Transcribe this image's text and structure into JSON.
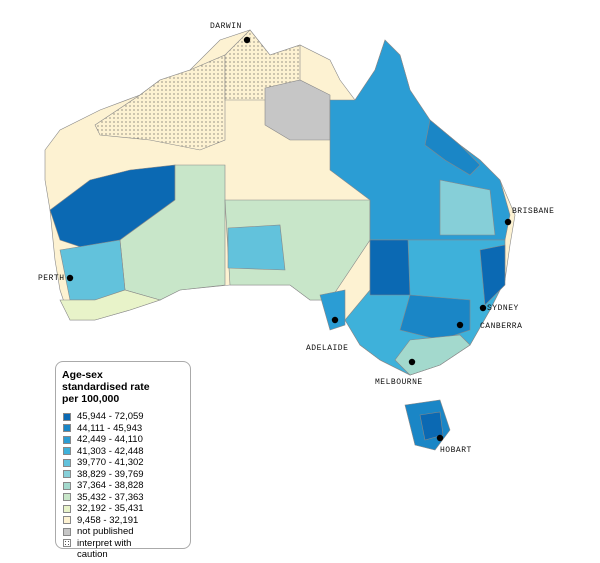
{
  "legend": {
    "title": "Age-sex standardised rate per 100,000",
    "items": [
      {
        "label": "45,944 - 72,059",
        "color": "#0b69b3"
      },
      {
        "label": "44,111 - 45,943",
        "color": "#1a86c6"
      },
      {
        "label": "42,449 - 44,110",
        "color": "#2b9dd4"
      },
      {
        "label": "41,303 - 42,448",
        "color": "#3eb1da"
      },
      {
        "label": "39,770 - 41,302",
        "color": "#62c2dc"
      },
      {
        "label": "38,829 - 39,769",
        "color": "#86cfd8"
      },
      {
        "label": "37,364 - 38,828",
        "color": "#a3d9cd"
      },
      {
        "label": "35,432 - 37,363",
        "color": "#c8e6c9"
      },
      {
        "label": "32,192 - 35,431",
        "color": "#e8f3c9"
      },
      {
        "label": "9,458 - 32,191",
        "color": "#fdf2d2"
      },
      {
        "label": "not published",
        "color": "#c6c6c6"
      },
      {
        "label": "interpret with caution",
        "color": "#ffffff",
        "pattern": "dots"
      }
    ]
  },
  "cities": [
    "DARWIN",
    "BRISBANE",
    "PERTH",
    "SYDNEY",
    "CANBERRA",
    "ADELAIDE",
    "MELBOURNE",
    "HOBART"
  ]
}
